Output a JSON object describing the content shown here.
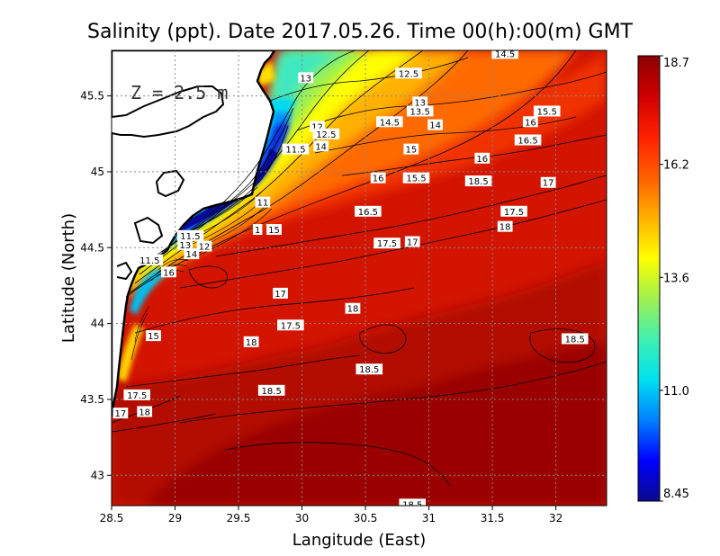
{
  "chart_data": {
    "type": "heatmap",
    "title": "Salinity (ppt). Date 2017.05.26. Time 00(h):00(m) GMT",
    "xlabel": "Langitude (East)",
    "ylabel": "Latitude (North)",
    "xlim": [
      28.5,
      32.4
    ],
    "ylim": [
      42.8,
      45.8
    ],
    "x_ticks": [
      28.5,
      29,
      29.5,
      30,
      30.5,
      31,
      31.5,
      32
    ],
    "x_tick_labels": [
      "28.5",
      "29",
      "29.5",
      "30",
      "30.5",
      "31",
      "31.5",
      "32"
    ],
    "y_ticks": [
      43,
      43.5,
      44,
      44.5,
      45,
      45.5
    ],
    "y_tick_labels": [
      "43",
      "43.5",
      "44",
      "44.5",
      "45",
      "45.5"
    ],
    "grid": true,
    "depth_label": "Z = 2.5 m",
    "colorbar": {
      "min": 8.45,
      "max": 18.7,
      "tick_values": [
        8.45,
        11.0,
        13.6,
        16.2,
        18.7
      ],
      "tick_labels": [
        "8.45",
        "11.0",
        "13.6",
        "16.2",
        "18.7"
      ],
      "colors": [
        "#0a0a8c",
        "#0000ff",
        "#0080ff",
        "#00e0f0",
        "#40f0b0",
        "#a0f050",
        "#ffff00",
        "#ffb000",
        "#ff6000",
        "#ff2000",
        "#d00000",
        "#8b0000"
      ]
    },
    "contour_labels": [
      {
        "text": "13",
        "lon": 30.03,
        "lat": 45.62
      },
      {
        "text": "12.5",
        "lon": 30.84,
        "lat": 45.65
      },
      {
        "text": "14.5",
        "lon": 31.6,
        "lat": 45.78
      },
      {
        "text": "13",
        "lon": 30.93,
        "lat": 45.46
      },
      {
        "text": "13.5",
        "lon": 30.93,
        "lat": 45.4
      },
      {
        "text": "15.5",
        "lon": 31.93,
        "lat": 45.4
      },
      {
        "text": "16",
        "lon": 31.8,
        "lat": 45.33
      },
      {
        "text": "14.5",
        "lon": 30.69,
        "lat": 45.33
      },
      {
        "text": "14",
        "lon": 31.05,
        "lat": 45.31
      },
      {
        "text": "12",
        "lon": 30.12,
        "lat": 45.3
      },
      {
        "text": "12.5",
        "lon": 30.19,
        "lat": 45.25
      },
      {
        "text": "16.5",
        "lon": 31.78,
        "lat": 45.21
      },
      {
        "text": "11.5",
        "lon": 29.95,
        "lat": 45.15
      },
      {
        "text": "14",
        "lon": 30.15,
        "lat": 45.17
      },
      {
        "text": "15",
        "lon": 30.86,
        "lat": 45.15
      },
      {
        "text": "16",
        "lon": 31.42,
        "lat": 45.09
      },
      {
        "text": "16",
        "lon": 30.6,
        "lat": 44.96
      },
      {
        "text": "15.5",
        "lon": 30.9,
        "lat": 44.96
      },
      {
        "text": "18.5",
        "lon": 31.39,
        "lat": 44.94
      },
      {
        "text": "17",
        "lon": 31.94,
        "lat": 44.93
      },
      {
        "text": "11",
        "lon": 29.69,
        "lat": 44.8
      },
      {
        "text": "16.5",
        "lon": 30.52,
        "lat": 44.74
      },
      {
        "text": "17.5",
        "lon": 31.67,
        "lat": 44.74
      },
      {
        "text": "18",
        "lon": 31.6,
        "lat": 44.64
      },
      {
        "text": "1",
        "lon": 29.65,
        "lat": 44.62
      },
      {
        "text": "15",
        "lon": 29.78,
        "lat": 44.62
      },
      {
        "text": "11.5",
        "lon": 29.12,
        "lat": 44.58
      },
      {
        "text": "17.5",
        "lon": 30.67,
        "lat": 44.53
      },
      {
        "text": "17",
        "lon": 30.87,
        "lat": 44.54
      },
      {
        "text": "13",
        "lon": 29.08,
        "lat": 44.52
      },
      {
        "text": "12",
        "lon": 29.23,
        "lat": 44.51
      },
      {
        "text": "14",
        "lon": 29.13,
        "lat": 44.46
      },
      {
        "text": "11.5",
        "lon": 28.8,
        "lat": 44.42
      },
      {
        "text": "16",
        "lon": 28.95,
        "lat": 44.34
      },
      {
        "text": "17",
        "lon": 29.83,
        "lat": 44.2
      },
      {
        "text": "18",
        "lon": 30.4,
        "lat": 44.1
      },
      {
        "text": "17.5",
        "lon": 29.91,
        "lat": 43.99
      },
      {
        "text": "15",
        "lon": 28.83,
        "lat": 43.92
      },
      {
        "text": "18",
        "lon": 29.6,
        "lat": 43.88
      },
      {
        "text": "18.5",
        "lon": 32.15,
        "lat": 43.9
      },
      {
        "text": "18.5",
        "lon": 30.53,
        "lat": 43.7
      },
      {
        "text": "18.5",
        "lon": 29.76,
        "lat": 43.56
      },
      {
        "text": "17.5",
        "lon": 28.7,
        "lat": 43.53
      },
      {
        "text": "17",
        "lon": 28.57,
        "lat": 43.41
      },
      {
        "text": "18",
        "lon": 28.76,
        "lat": 43.42
      },
      {
        "text": "18.5",
        "lon": 30.87,
        "lat": 42.81
      }
    ]
  }
}
